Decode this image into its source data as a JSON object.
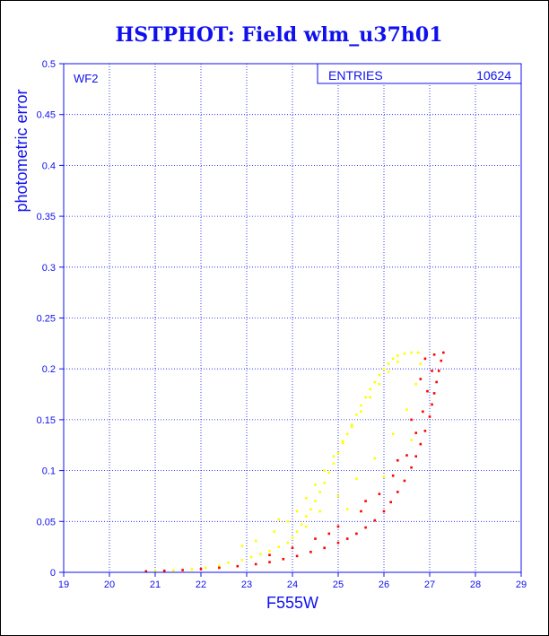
{
  "colors": {
    "axis": "#1010ee",
    "grid": "#1010ee",
    "frame": "#000000",
    "series_yellow": "#ffff00",
    "series_red": "#ff0000"
  },
  "chart_data": {
    "type": "scatter",
    "title": "HSTPHOT: Field wlm_u37h01",
    "xlabel": "F555W",
    "ylabel": "photometric error",
    "xlim": [
      19,
      29
    ],
    "ylim": [
      0,
      0.5
    ],
    "xticks": [
      19,
      20,
      21,
      22,
      23,
      24,
      25,
      26,
      27,
      28,
      29
    ],
    "yticks": [
      0,
      0.05,
      0.1,
      0.15,
      0.2,
      0.25,
      0.3,
      0.35,
      0.4,
      0.45,
      0.5
    ],
    "grid": true,
    "panel_label": "WF2",
    "stats_box": {
      "label": "ENTRIES",
      "value": "10624"
    },
    "series": [
      {
        "color": "#ffff00",
        "points": [
          [
            21.0,
            0.0012
          ],
          [
            21.4,
            0.002
          ],
          [
            21.8,
            0.003
          ],
          [
            22.1,
            0.0045
          ],
          [
            22.4,
            0.0065
          ],
          [
            22.6,
            0.0095
          ],
          [
            22.9,
            0.012
          ],
          [
            23.1,
            0.015
          ],
          [
            23.3,
            0.018
          ],
          [
            23.5,
            0.021
          ],
          [
            23.7,
            0.025
          ],
          [
            23.9,
            0.029
          ],
          [
            24.0,
            0.034
          ],
          [
            24.1,
            0.04
          ],
          [
            24.2,
            0.047
          ],
          [
            24.3,
            0.055
          ],
          [
            24.4,
            0.062
          ],
          [
            24.5,
            0.07
          ],
          [
            24.6,
            0.079
          ],
          [
            24.7,
            0.088
          ],
          [
            24.8,
            0.098
          ],
          [
            24.9,
            0.107
          ],
          [
            25.0,
            0.117
          ],
          [
            25.1,
            0.127
          ],
          [
            25.2,
            0.136
          ],
          [
            25.3,
            0.145
          ],
          [
            25.4,
            0.155
          ],
          [
            25.5,
            0.164
          ],
          [
            25.6,
            0.172
          ],
          [
            25.7,
            0.18
          ],
          [
            25.8,
            0.187
          ],
          [
            25.9,
            0.194
          ],
          [
            26.0,
            0.2
          ],
          [
            26.1,
            0.205
          ],
          [
            26.2,
            0.21
          ],
          [
            26.3,
            0.213
          ],
          [
            26.45,
            0.215
          ],
          [
            26.6,
            0.216
          ],
          [
            26.75,
            0.216
          ],
          [
            23.2,
            0.031
          ],
          [
            23.6,
            0.04
          ],
          [
            23.9,
            0.05
          ],
          [
            24.1,
            0.06
          ],
          [
            24.3,
            0.073
          ],
          [
            24.5,
            0.086
          ],
          [
            24.7,
            0.1
          ],
          [
            24.9,
            0.114
          ],
          [
            25.1,
            0.129
          ],
          [
            25.3,
            0.143
          ],
          [
            25.5,
            0.158
          ],
          [
            25.7,
            0.172
          ],
          [
            25.9,
            0.185
          ],
          [
            26.1,
            0.197
          ],
          [
            26.3,
            0.207
          ],
          [
            22.9,
            0.026
          ],
          [
            23.7,
            0.052
          ],
          [
            24.6,
            0.06
          ],
          [
            25.0,
            0.075
          ],
          [
            25.4,
            0.092
          ],
          [
            25.8,
            0.112
          ],
          [
            26.2,
            0.136
          ],
          [
            26.5,
            0.16
          ],
          [
            26.7,
            0.185
          ],
          [
            26.8,
            0.205
          ],
          [
            24.3,
            0.045
          ],
          [
            25.2,
            0.062
          ],
          [
            26.0,
            0.094
          ],
          [
            26.6,
            0.13
          ]
        ]
      },
      {
        "color": "#ff0000",
        "points": [
          [
            20.8,
            0.001
          ],
          [
            21.2,
            0.0015
          ],
          [
            21.6,
            0.0022
          ],
          [
            22.0,
            0.0032
          ],
          [
            22.4,
            0.0045
          ],
          [
            22.8,
            0.006
          ],
          [
            23.2,
            0.008
          ],
          [
            23.5,
            0.01
          ],
          [
            23.8,
            0.013
          ],
          [
            24.1,
            0.016
          ],
          [
            24.4,
            0.02
          ],
          [
            24.7,
            0.024
          ],
          [
            25.0,
            0.029
          ],
          [
            25.2,
            0.033
          ],
          [
            25.4,
            0.038
          ],
          [
            25.6,
            0.044
          ],
          [
            25.8,
            0.051
          ],
          [
            26.0,
            0.06
          ],
          [
            26.15,
            0.069
          ],
          [
            26.3,
            0.079
          ],
          [
            26.45,
            0.09
          ],
          [
            26.6,
            0.103
          ],
          [
            26.7,
            0.114
          ],
          [
            26.8,
            0.126
          ],
          [
            26.9,
            0.139
          ],
          [
            27.0,
            0.153
          ],
          [
            27.05,
            0.165
          ],
          [
            27.1,
            0.176
          ],
          [
            27.15,
            0.187
          ],
          [
            27.2,
            0.198
          ],
          [
            27.25,
            0.208
          ],
          [
            27.3,
            0.216
          ],
          [
            23.5,
            0.017
          ],
          [
            24.0,
            0.024
          ],
          [
            24.5,
            0.033
          ],
          [
            25.0,
            0.045
          ],
          [
            25.5,
            0.06
          ],
          [
            25.9,
            0.077
          ],
          [
            26.2,
            0.095
          ],
          [
            26.5,
            0.115
          ],
          [
            26.7,
            0.137
          ],
          [
            26.85,
            0.158
          ],
          [
            26.95,
            0.178
          ],
          [
            27.05,
            0.198
          ],
          [
            27.1,
            0.214
          ],
          [
            24.8,
            0.038
          ],
          [
            25.6,
            0.07
          ],
          [
            26.3,
            0.11
          ],
          [
            26.6,
            0.15
          ],
          [
            26.8,
            0.19
          ],
          [
            26.9,
            0.21
          ]
        ]
      }
    ]
  }
}
